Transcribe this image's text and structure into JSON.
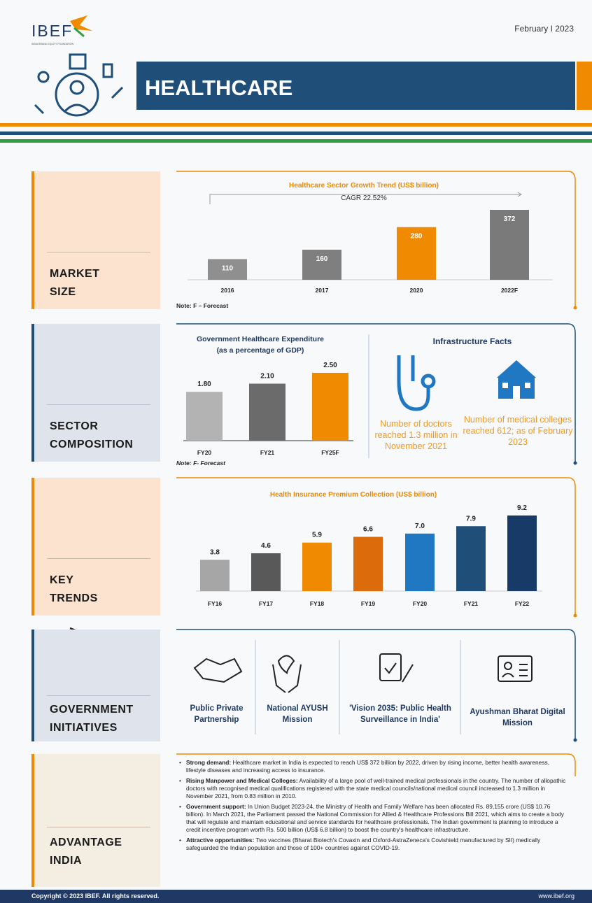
{
  "header": {
    "logo": "IBEF",
    "logo_sub": "INDIA BRAND EQUITY FOUNDATION",
    "date": "February I 2023",
    "title": "HEALTHCARE"
  },
  "sections": {
    "market": "MARKET SIZE",
    "sector": "SECTOR COMPOSITION",
    "trends": "KEY TRENDS",
    "government": "GOVERNMENT INITIATIVES",
    "advantage": "ADVANTAGE INDIA"
  },
  "chart_data": [
    {
      "type": "bar",
      "title": "Healthcare Sector Growth Trend (US$ billion)",
      "annotation": "CAGR 22.52%",
      "note": "Note: F – Forecast",
      "categories": [
        "2016",
        "2017",
        "2020",
        "2022F"
      ],
      "values": [
        110,
        160,
        280,
        372
      ],
      "colors": [
        "#8f8f8f",
        "#7f7f7f",
        "#f08a00",
        "#7a7a7a"
      ]
    },
    {
      "type": "bar",
      "title": "Government Healthcare Expenditure",
      "subtitle": "(as a percentage of GDP)",
      "note": "Note: F- Forecast",
      "categories": [
        "FY20",
        "FY21",
        "FY25F"
      ],
      "values": [
        1.8,
        2.1,
        2.5
      ],
      "value_labels": [
        "1.80",
        "2.10",
        "2.50"
      ],
      "colors": [
        "#b3b3b3",
        "#6b6b6b",
        "#f08a00"
      ]
    },
    {
      "type": "bar",
      "title": "Health Insurance Premium Collection (US$ billion)",
      "categories": [
        "FY16",
        "FY17",
        "FY18",
        "FY19",
        "FY20",
        "FY21",
        "FY22"
      ],
      "values": [
        3.8,
        4.6,
        5.9,
        6.6,
        7.0,
        7.9,
        9.2
      ],
      "value_labels": [
        "3.8",
        "4.6",
        "5.9",
        "6.6",
        "7.0",
        "7.9",
        "9.2"
      ],
      "colors": [
        "#a6a6a6",
        "#595959",
        "#f08a00",
        "#dc6b0c",
        "#1f78c1",
        "#1f4e79",
        "#173a66"
      ]
    }
  ],
  "infrastructure": {
    "title": "Infrastructure Facts",
    "facts": [
      "Number of doctors reached 1.3 million in November 2021",
      "Number of medical colleges reached 612; as of February 2023"
    ]
  },
  "initiatives": [
    "Public Private Partnership",
    "National AYUSH Mission",
    "'Vision 2035: Public Health Surveillance in India'",
    "Ayushman Bharat Digital Mission"
  ],
  "advantages": [
    {
      "lead": "Strong demand:",
      "text": "Healthcare market in India is expected to reach US$ 372 billion by 2022, driven by rising income, better health awareness, lifestyle diseases and increasing access to insurance."
    },
    {
      "lead": "Rising Manpower and Medical Colleges:",
      "text": "Availability of a large pool of well-trained medical professionals in the country. The number of allopathic doctors with recognised medical qualifications registered with the state medical councils/national medical council increased to 1.3 million in November 2021, from 0.83 million in 2010."
    },
    {
      "lead": "Government support:",
      "text": "In Union Budget 2023-24, the Ministry of Health and Family Welfare has been allocated Rs. 89,155 crore (US$ 10.76 billion). In March 2021, the Parliament passed the National Commission for Allied & Healthcare Professions Bill 2021, which aims to create a body that will regulate and maintain educational and service standards for healthcare professionals. The Indian government is planning to introduce a credit incentive program worth Rs. 500 billion (US$ 6.8 billion) to boost the country's healthcare infrastructure."
    },
    {
      "lead": "Attractive opportunities:",
      "text": "Two vaccines (Bharat Biotech's Covaxin and Oxford-AstraZeneca's Covishield manufactured by SII) medically safeguarded the Indian population and those of 100+ countries against COVID-19."
    }
  ],
  "footer": {
    "copyright": "Copyright © 2023 IBEF. All rights reserved.",
    "url": "www.ibef.org"
  }
}
